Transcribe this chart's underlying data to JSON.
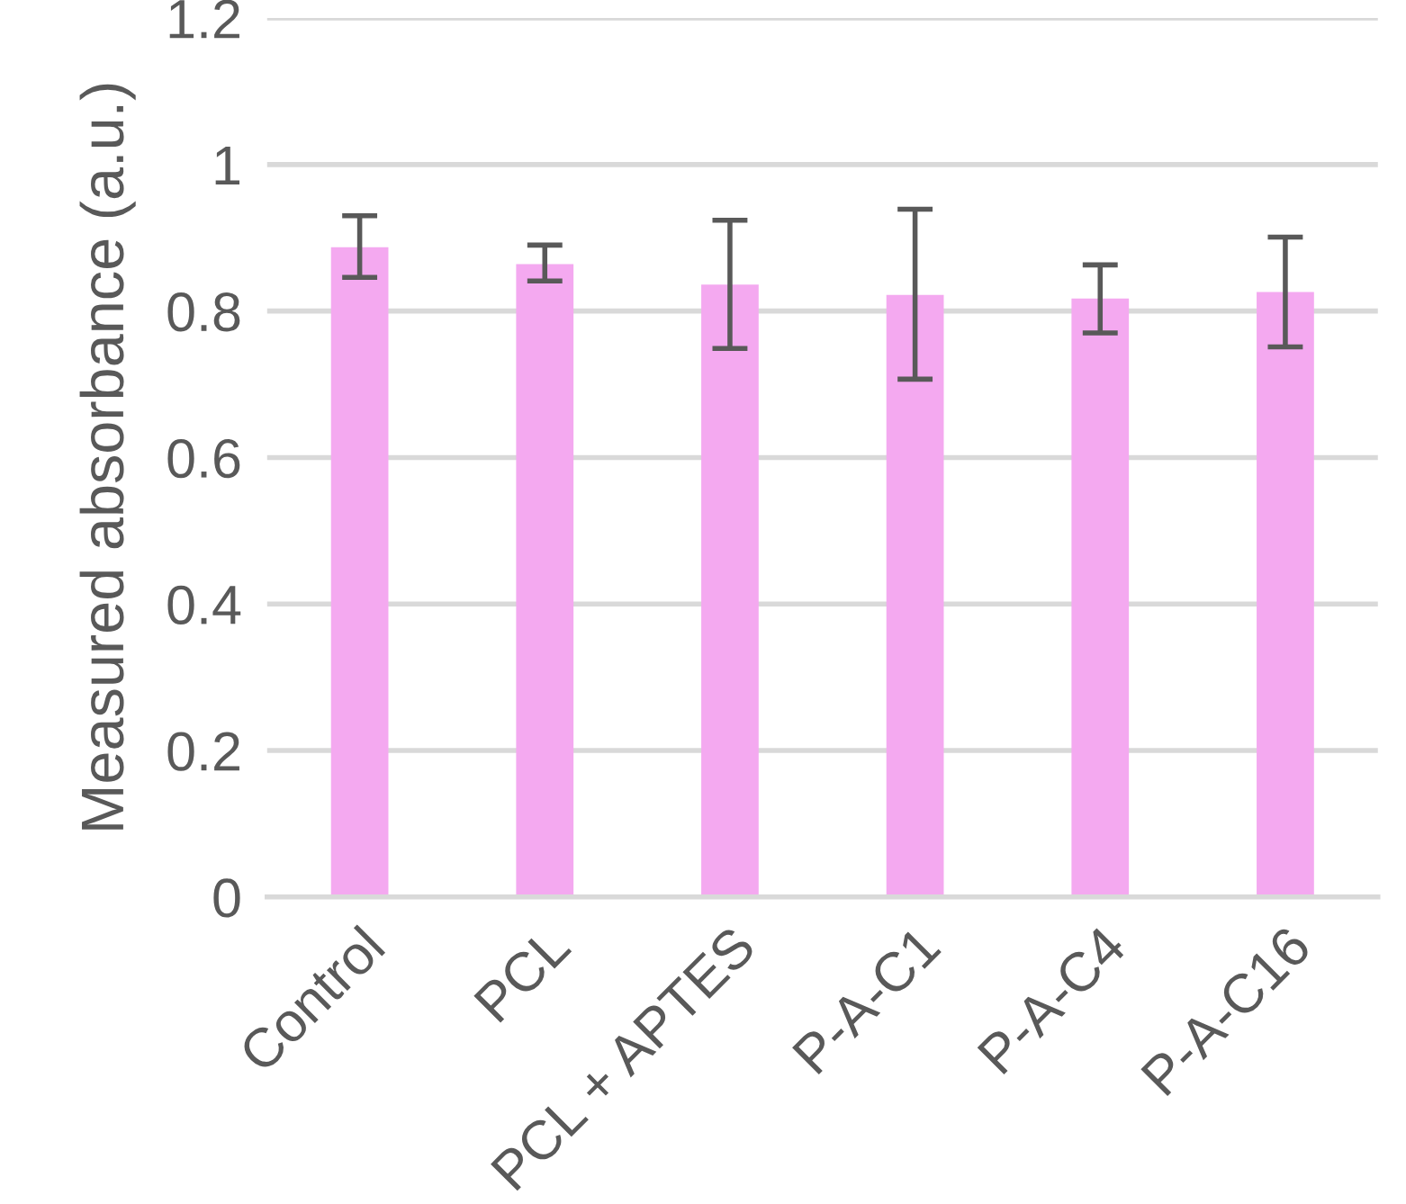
{
  "chart_data": {
    "type": "bar",
    "ylabel": "Measured absorbance (a.u.)",
    "categories": [
      "Control",
      "PCL",
      "PCL + APTES",
      "P-A-C1",
      "P-A-C4",
      "P-A-C16"
    ],
    "values": [
      0.887,
      0.864,
      0.836,
      0.822,
      0.817,
      0.826
    ],
    "errors": [
      [
        0.846,
        0.93
      ],
      [
        0.841,
        0.89
      ],
      [
        0.749,
        0.924
      ],
      [
        0.707,
        0.939
      ],
      [
        0.77,
        0.863
      ],
      [
        0.751,
        0.901
      ]
    ],
    "color": "#f4a9f0",
    "ylim": [
      0,
      1.2
    ],
    "yticks": [
      0,
      0.2,
      0.4,
      0.6,
      0.8,
      1,
      1.2
    ],
    "grid": "y",
    "legend": false
  }
}
